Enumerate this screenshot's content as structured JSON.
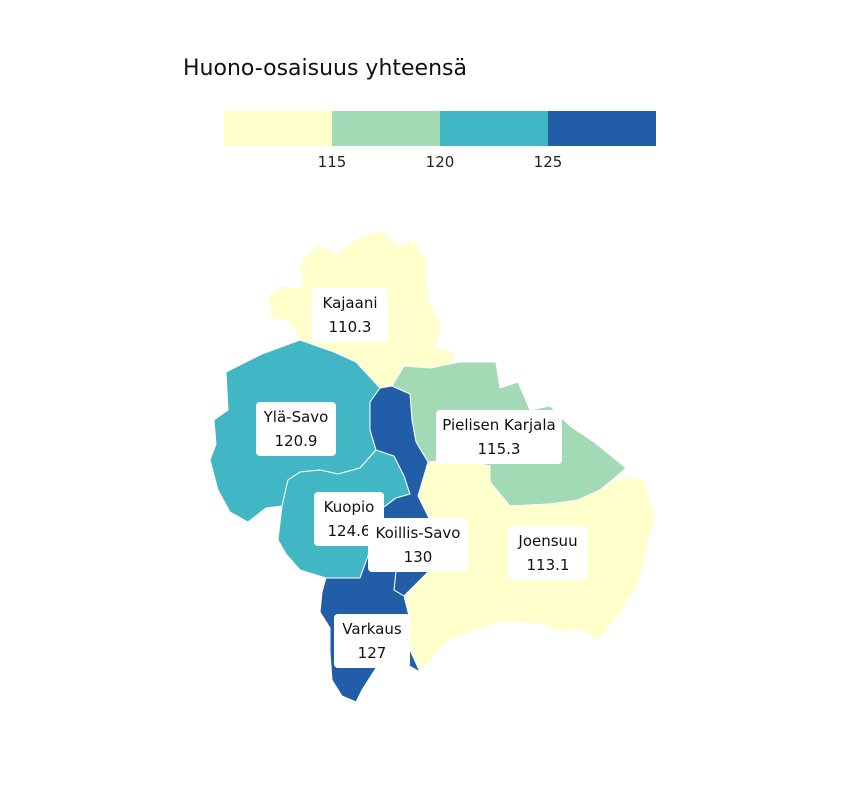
{
  "legend": {
    "title": "Huono-osaisuus yhteensä",
    "bins": [
      {
        "color": "#ffffcc",
        "upper": 115
      },
      {
        "color": "#a1dab4",
        "upper": 120
      },
      {
        "color": "#41b6c4",
        "upper": 125
      },
      {
        "color": "#225ea8",
        "upper": null
      }
    ],
    "ticks": [
      "115",
      "120",
      "125"
    ]
  },
  "regions": [
    {
      "id": "kajaani",
      "name": "Kajaani",
      "value": "110.3",
      "color": "#ffffcc"
    },
    {
      "id": "yla-savo",
      "name": "Ylä-Savo",
      "value": "120.9",
      "color": "#41b6c4"
    },
    {
      "id": "pielisen-karjala",
      "name": "Pielisen Karjala",
      "value": "115.3",
      "color": "#a1dab4"
    },
    {
      "id": "kuopio",
      "name": "Kuopio",
      "value": "124.6",
      "color": "#41b6c4"
    },
    {
      "id": "koillis-savo",
      "name": "Koillis-Savo",
      "value": "130",
      "color": "#225ea8"
    },
    {
      "id": "joensuu",
      "name": "Joensuu",
      "value": "113.1",
      "color": "#ffffcc"
    },
    {
      "id": "varkaus",
      "name": "Varkaus",
      "value": "127",
      "color": "#225ea8"
    }
  ]
}
